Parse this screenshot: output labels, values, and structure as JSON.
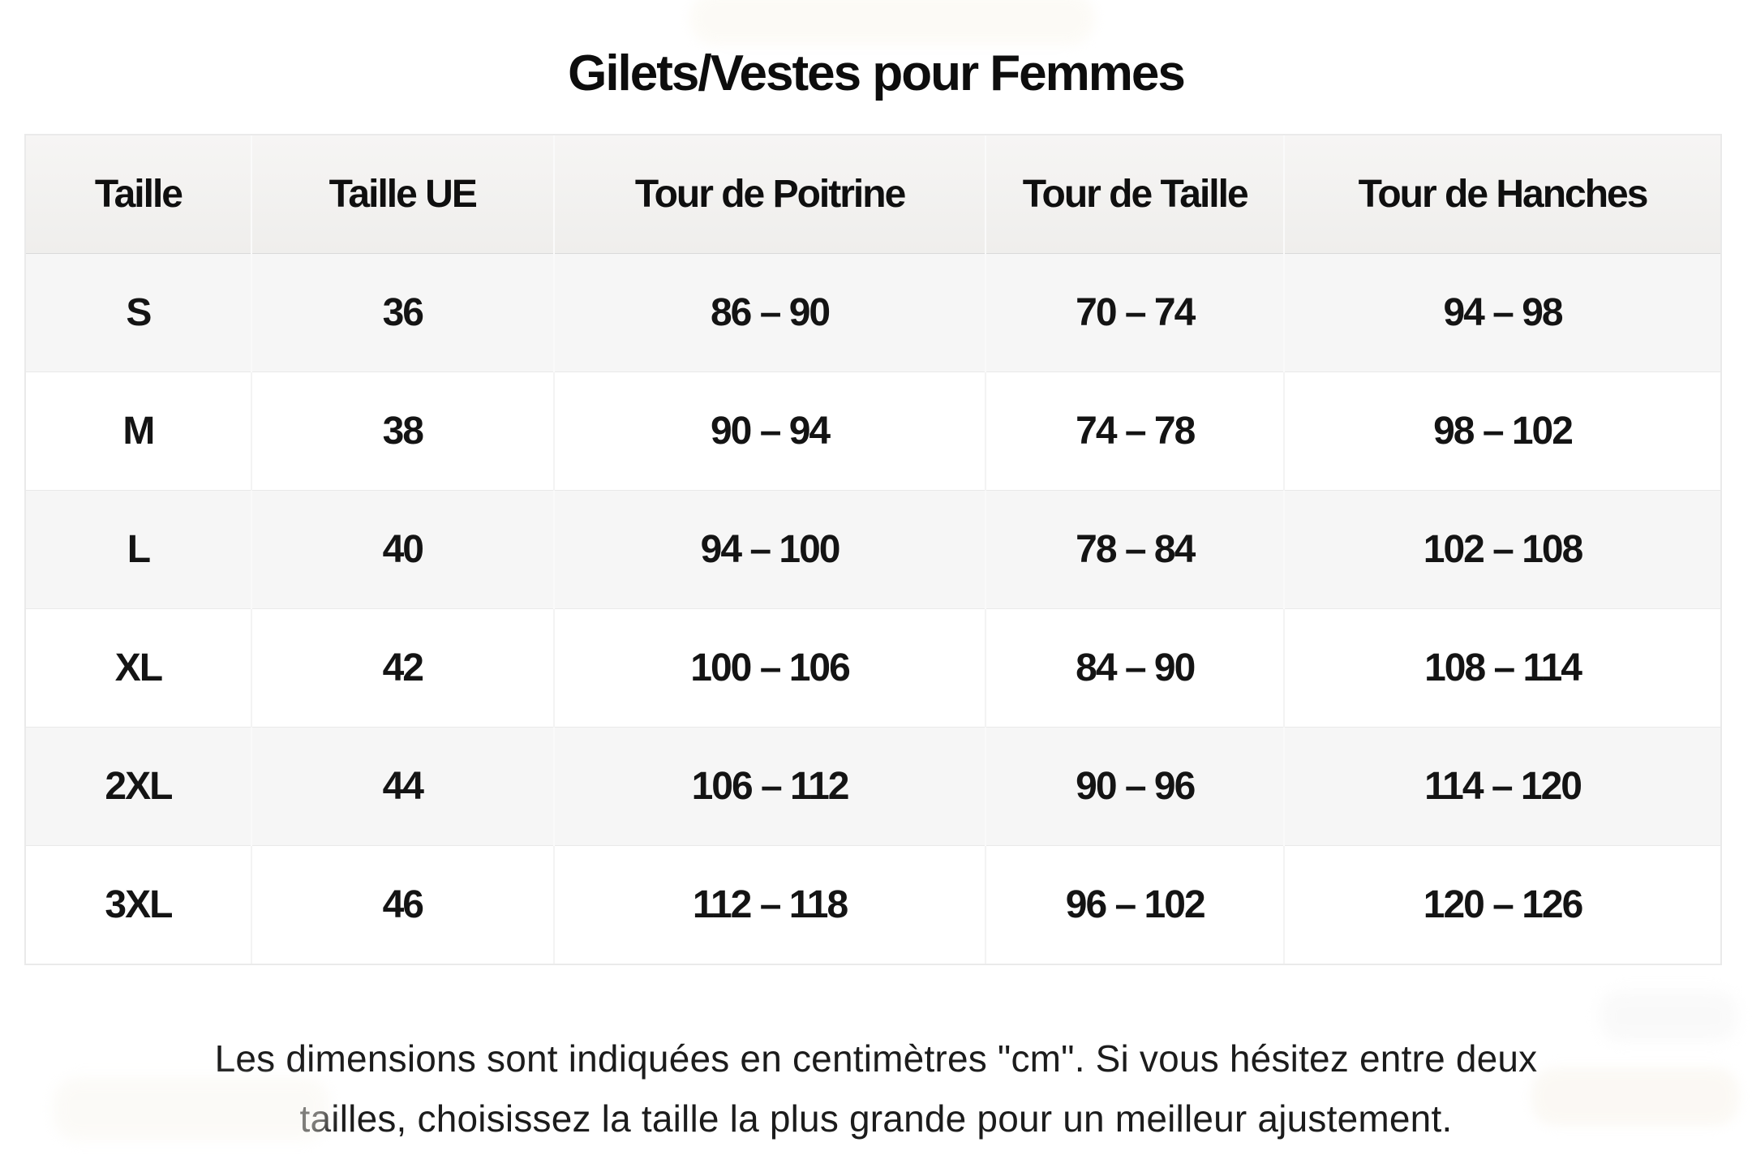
{
  "title": "Gilets/Vestes pour Femmes",
  "table": {
    "headers": [
      "Taille",
      "Taille UE",
      "Tour de Poitrine",
      "Tour de Taille",
      "Tour de Hanches"
    ],
    "rows": [
      [
        "S",
        "36",
        "86 – 90",
        "70 – 74",
        "94 – 98"
      ],
      [
        "M",
        "38",
        "90 – 94",
        "74 – 78",
        "98 – 102"
      ],
      [
        "L",
        "40",
        "94 – 100",
        "78 – 84",
        "102 – 108"
      ],
      [
        "XL",
        "42",
        "100 – 106",
        "84 – 90",
        "108 – 114"
      ],
      [
        "2XL",
        "44",
        "106 – 112",
        "90 – 96",
        "114 – 120"
      ],
      [
        "3XL",
        "46",
        "112 – 118",
        "96 – 102",
        "120 – 126"
      ]
    ]
  },
  "footer": {
    "line1": "Les dimensions sont indiquées en centimètres \"cm\". Si vous hésitez entre deux",
    "line2": "tailles, choisissez la taille la plus grande pour un meilleur ajustement."
  },
  "colors": {
    "page_bg": "#ffffff",
    "header_bg": "#f2f1f0",
    "row_alt_bg": "#f6f6f6",
    "row_bg": "#ffffff",
    "border": "#e9e9e9",
    "text": "#141414"
  },
  "units": "cm"
}
